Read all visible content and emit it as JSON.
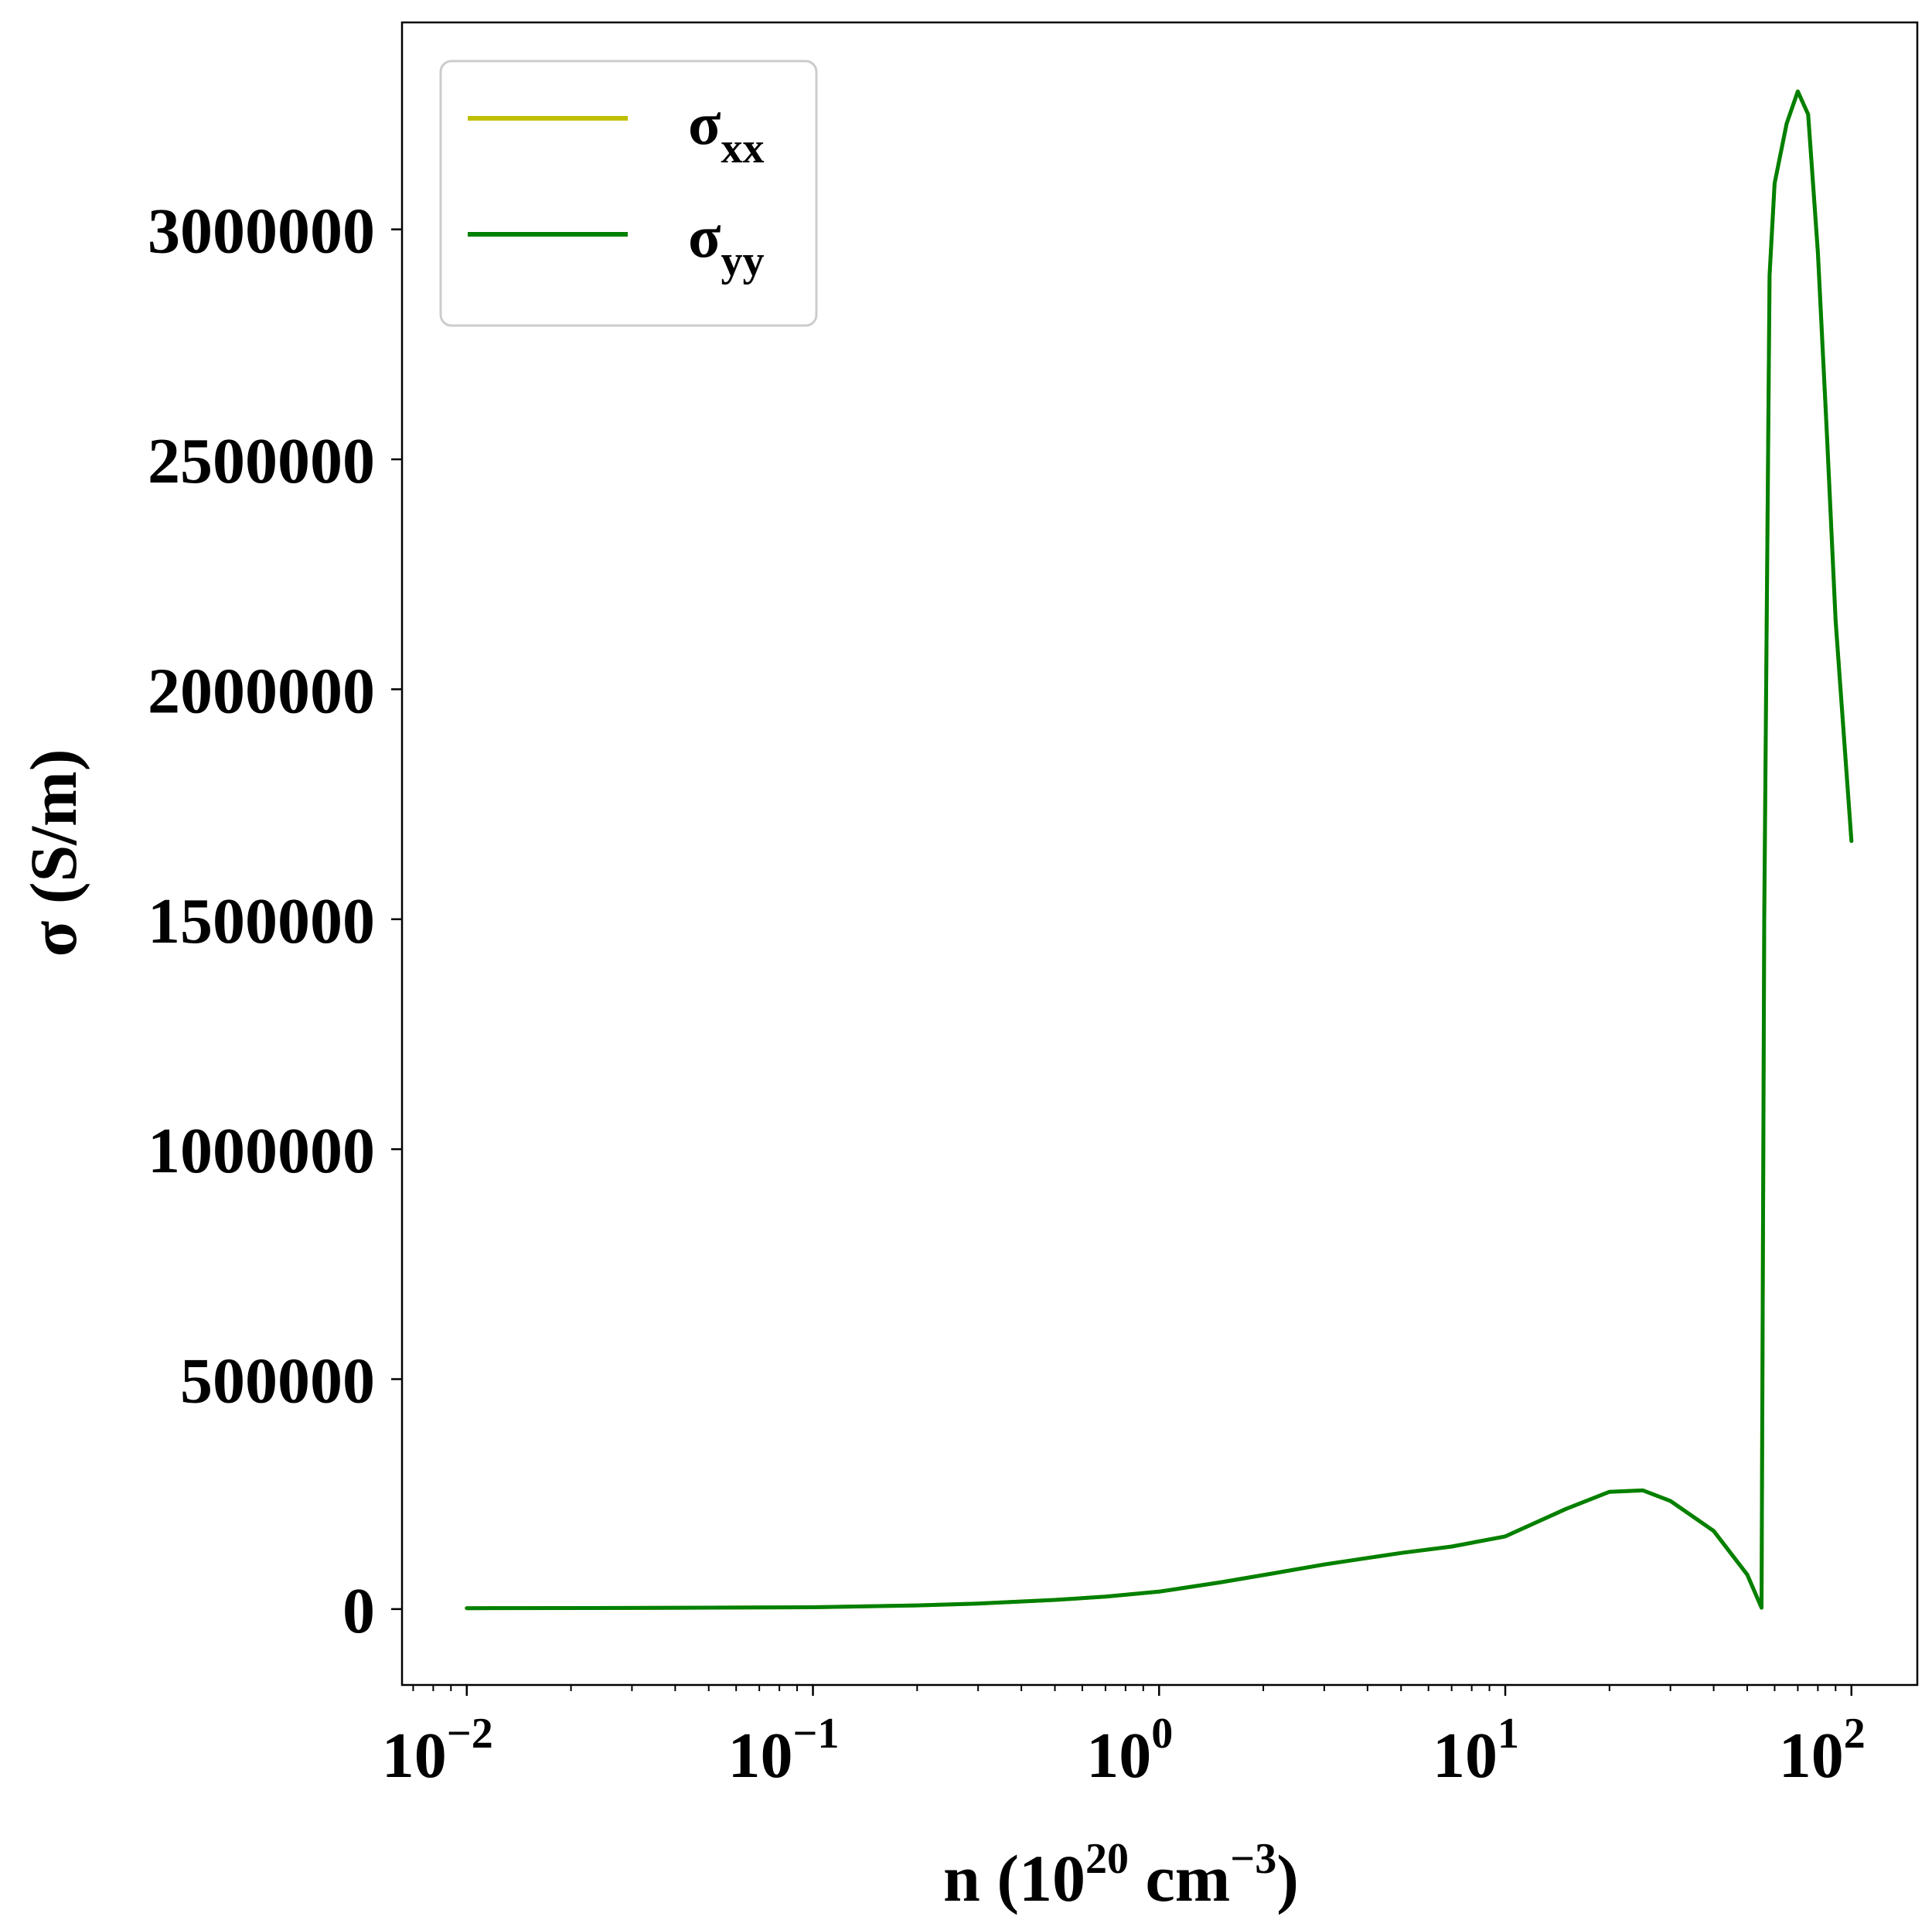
{
  "chart_data": {
    "type": "line",
    "xlabel": {
      "base": "n (10",
      "exp1": "20",
      "mid": " cm",
      "exp2": "−3",
      "end": ")"
    },
    "ylabel": "σ (S/m)",
    "xscale": "log",
    "xlim": [
      0.0065,
      155
    ],
    "ylim": [
      -165000,
      3450000
    ],
    "x_ticks": [
      {
        "value": 0.01,
        "base": "10",
        "exp": "−2"
      },
      {
        "value": 0.1,
        "base": "10",
        "exp": "−1"
      },
      {
        "value": 1,
        "base": "10",
        "exp": "0"
      },
      {
        "value": 10,
        "base": "10",
        "exp": "1"
      },
      {
        "value": 100,
        "base": "10",
        "exp": "2"
      }
    ],
    "y_ticks": [
      {
        "value": 0,
        "label": "0"
      },
      {
        "value": 500000,
        "label": "500000"
      },
      {
        "value": 1000000,
        "label": "1000000"
      },
      {
        "value": 1500000,
        "label": "1500000"
      },
      {
        "value": 2000000,
        "label": "2000000"
      },
      {
        "value": 2500000,
        "label": "2500000"
      },
      {
        "value": 3000000,
        "label": "3000000"
      }
    ],
    "legend": {
      "position": "top-left"
    },
    "series": [
      {
        "name_base": "σ",
        "name_sub": "xx",
        "color": "#bfbf00",
        "x": [
          0.01,
          0.03,
          0.1,
          0.2,
          0.3,
          0.5,
          0.7,
          1,
          1.5,
          2,
          3,
          5,
          7,
          10,
          15,
          20,
          25,
          30,
          40,
          50,
          55,
          56,
          58,
          60,
          65,
          70,
          75,
          80,
          85,
          90,
          100
        ],
        "y": [
          2000,
          2500,
          4000,
          8000,
          12000,
          20000,
          27000,
          38000,
          58000,
          74000,
          97000,
          122000,
          136000,
          158000,
          218000,
          255000,
          258000,
          235000,
          170000,
          75000,
          3000,
          1500000,
          2900000,
          3100000,
          3230000,
          3300000,
          3250000,
          2950000,
          2550000,
          2150000,
          1670000
        ]
      },
      {
        "name_base": "σ",
        "name_sub": "yy",
        "color": "#008000",
        "x": [
          0.01,
          0.03,
          0.1,
          0.2,
          0.3,
          0.5,
          0.7,
          1,
          1.5,
          2,
          3,
          5,
          7,
          10,
          15,
          20,
          25,
          30,
          40,
          50,
          55,
          56,
          58,
          60,
          65,
          70,
          75,
          80,
          85,
          90,
          100
        ],
        "y": [
          2000,
          2500,
          4000,
          8000,
          12000,
          20000,
          27000,
          38000,
          58000,
          74000,
          97000,
          122000,
          136000,
          158000,
          218000,
          255000,
          258000,
          235000,
          170000,
          75000,
          3000,
          1500000,
          2900000,
          3100000,
          3230000,
          3300000,
          3250000,
          2950000,
          2550000,
          2150000,
          1670000
        ]
      }
    ]
  }
}
